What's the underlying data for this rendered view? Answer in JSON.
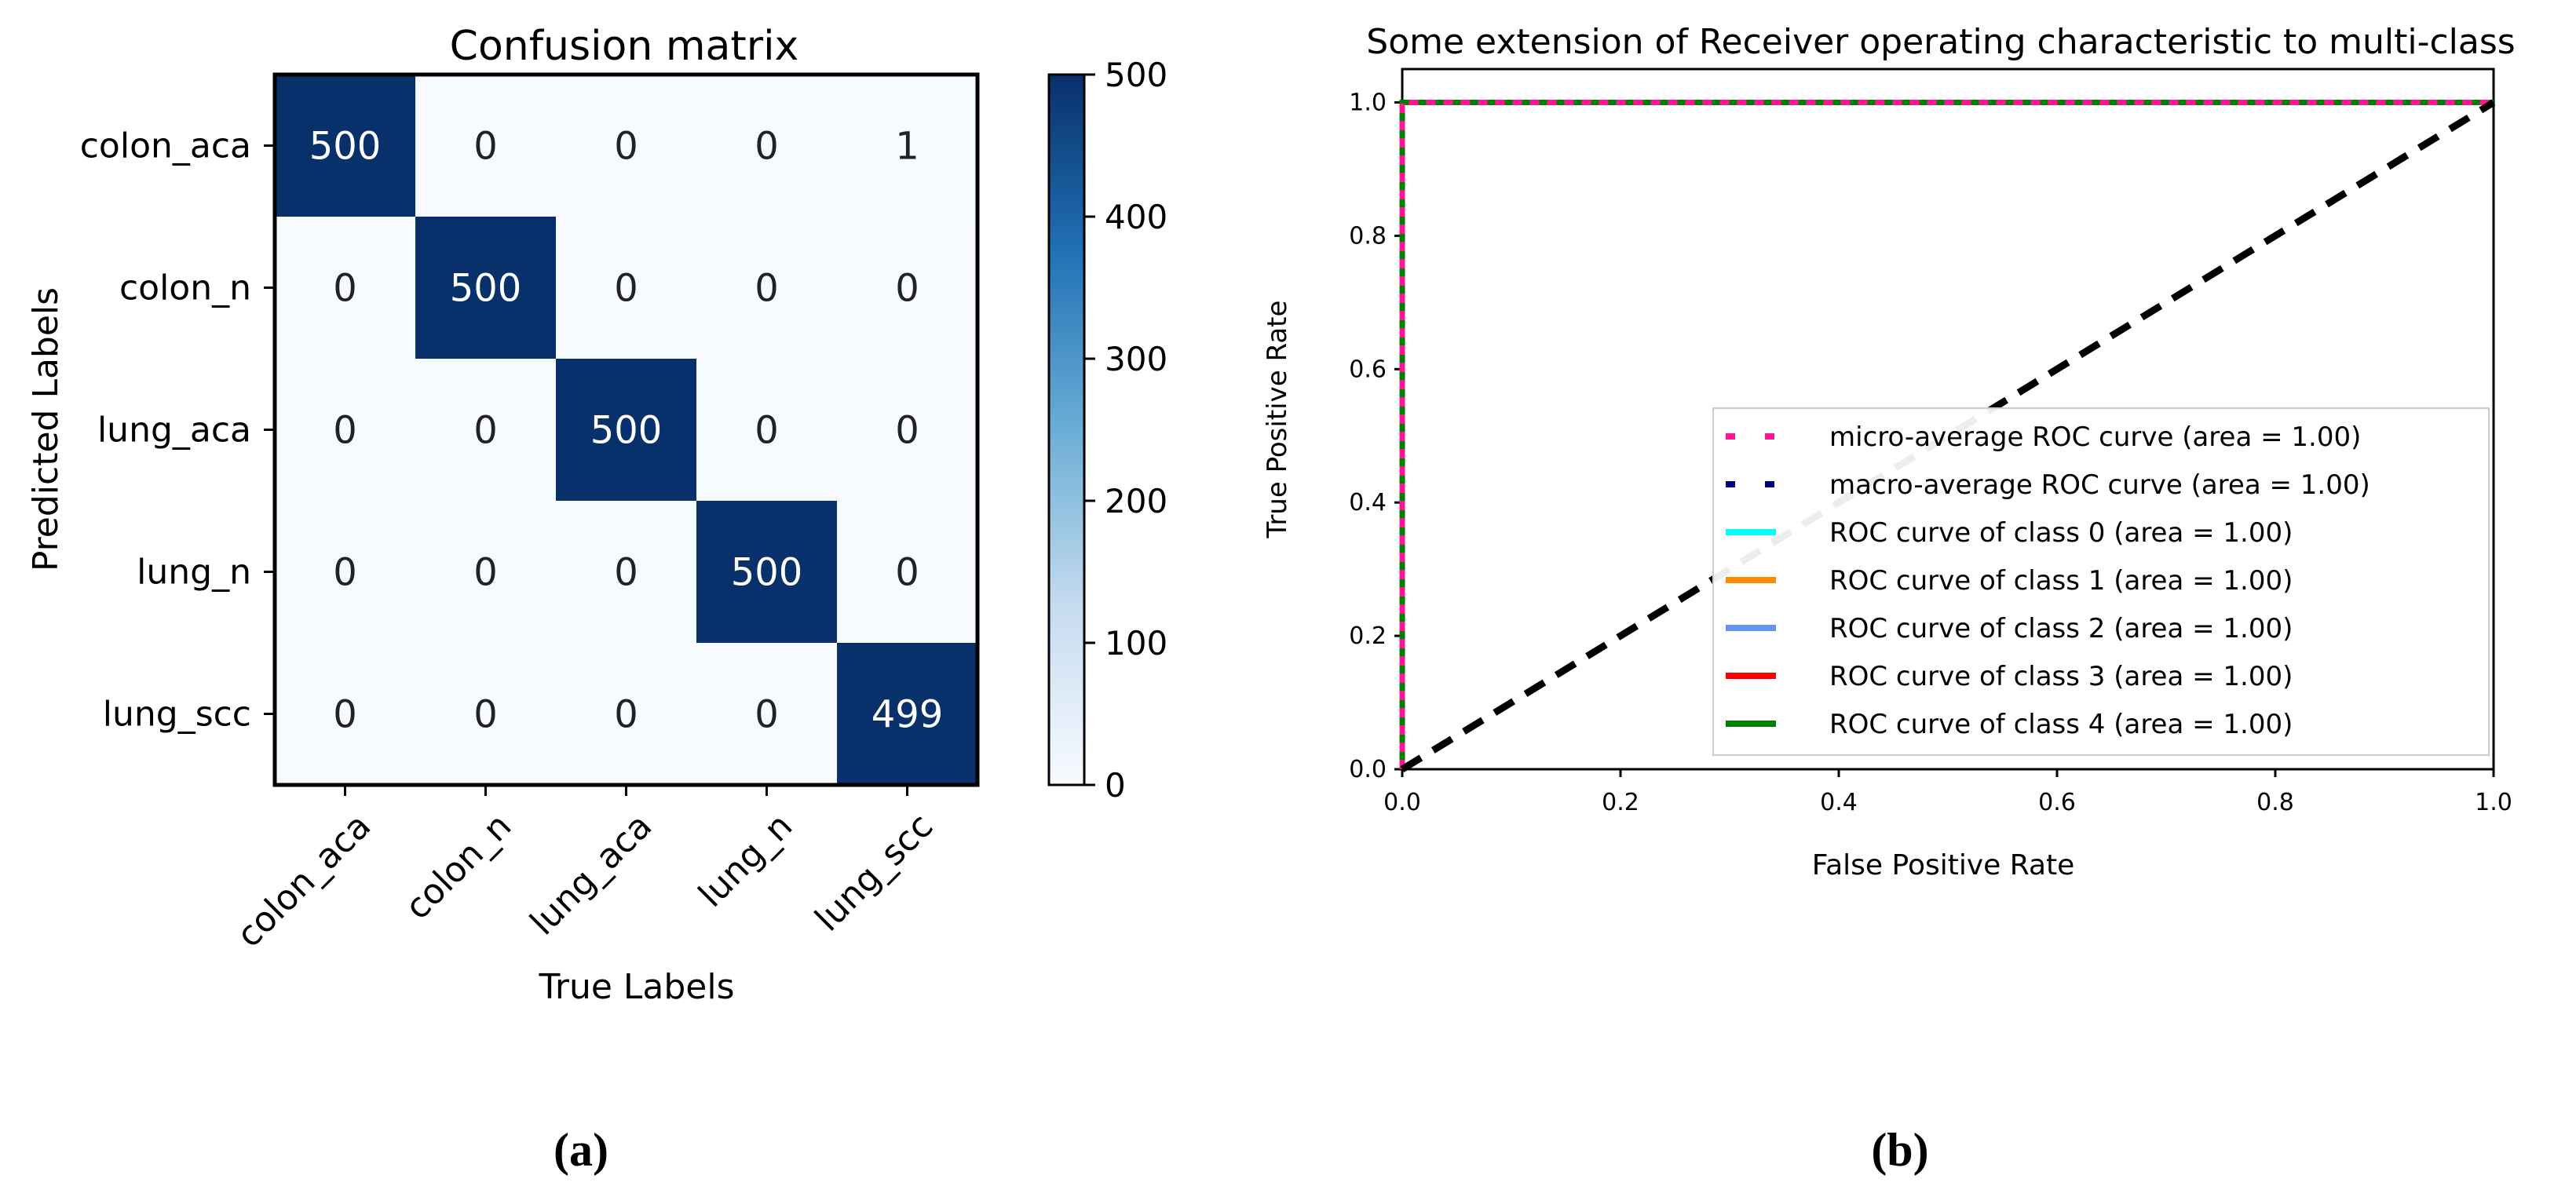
{
  "chart_data": [
    {
      "type": "heatmap",
      "title": "Confusion matrix",
      "xlabel": "True Labels",
      "ylabel": "Predicted Labels",
      "x_categories": [
        "colon_aca",
        "colon_n",
        "lung_aca",
        "lung_n",
        "lung_scc"
      ],
      "y_categories": [
        "colon_aca",
        "colon_n",
        "lung_aca",
        "lung_n",
        "lung_scc"
      ],
      "matrix": [
        [
          500,
          0,
          0,
          0,
          1
        ],
        [
          0,
          500,
          0,
          0,
          0
        ],
        [
          0,
          0,
          500,
          0,
          0
        ],
        [
          0,
          0,
          0,
          500,
          0
        ],
        [
          0,
          0,
          0,
          0,
          499
        ]
      ],
      "colorbar": {
        "min": 0,
        "max": 500,
        "ticks": [
          0,
          100,
          200,
          300,
          400,
          500
        ]
      },
      "colors": {
        "low": "#f7fbff",
        "mid": "#6baed6",
        "high": "#08306b"
      }
    },
    {
      "type": "line",
      "title": "Some extension of Receiver operating characteristic to multi-class",
      "xlabel": "False Positive Rate",
      "ylabel": "True Positive Rate",
      "xlim": [
        0.0,
        1.0
      ],
      "ylim": [
        0.0,
        1.05
      ],
      "x_ticks": [
        "0.0",
        "0.2",
        "0.4",
        "0.6",
        "0.8",
        "1.0"
      ],
      "y_ticks": [
        "0.0",
        "0.2",
        "0.4",
        "0.6",
        "0.8",
        "1.0"
      ],
      "legend_position": "lower-right",
      "series": [
        {
          "name": "micro-average ROC curve (area = 1.00)",
          "color": "#ff1493",
          "style": "dotted",
          "x": [
            0.0,
            0.0,
            1.0
          ],
          "y": [
            0.0,
            1.0,
            1.0
          ]
        },
        {
          "name": "macro-average ROC curve (area = 1.00)",
          "color": "#000080",
          "style": "dotted",
          "x": [
            0.0,
            0.0,
            1.0
          ],
          "y": [
            0.0,
            1.0,
            1.0
          ]
        },
        {
          "name": "ROC curve of class 0 (area = 1.00)",
          "color": "#00ffff",
          "style": "solid",
          "x": [
            0.0,
            0.0,
            1.0
          ],
          "y": [
            0.0,
            1.0,
            1.0
          ]
        },
        {
          "name": "ROC curve of class 1 (area = 1.00)",
          "color": "#ff8c00",
          "style": "solid",
          "x": [
            0.0,
            0.0,
            1.0
          ],
          "y": [
            0.0,
            1.0,
            1.0
          ]
        },
        {
          "name": "ROC curve of class 2 (area = 1.00)",
          "color": "#6495ed",
          "style": "solid",
          "x": [
            0.0,
            0.0,
            1.0
          ],
          "y": [
            0.0,
            1.0,
            1.0
          ]
        },
        {
          "name": "ROC curve of class 3 (area = 1.00)",
          "color": "#ff0000",
          "style": "solid",
          "x": [
            0.0,
            0.0,
            1.0
          ],
          "y": [
            0.0,
            1.0,
            1.0
          ]
        },
        {
          "name": "ROC curve of class 4 (area = 1.00)",
          "color": "#008000",
          "style": "solid",
          "x": [
            0.0,
            0.0,
            1.0
          ],
          "y": [
            0.0,
            1.0,
            1.0
          ]
        }
      ],
      "diagonal": {
        "color": "#000000",
        "style": "dashed",
        "x": [
          0.0,
          1.0
        ],
        "y": [
          0.0,
          1.0
        ]
      }
    }
  ],
  "captions": {
    "a": "(a)",
    "b": "(b)"
  }
}
